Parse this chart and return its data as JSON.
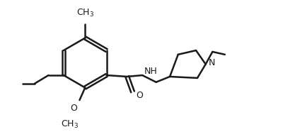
{
  "line_color": "#1a1a1a",
  "bg_color": "#ffffff",
  "lw": 1.8,
  "font_size": 9,
  "figsize": [
    4.0,
    1.86
  ],
  "dpi": 100,
  "label_NH": "NH",
  "label_N": "N",
  "label_O_carbonyl": "O",
  "label_O_methoxy": "O",
  "label_methyl_top": "CH₃",
  "label_methoxy": "OCH₃"
}
